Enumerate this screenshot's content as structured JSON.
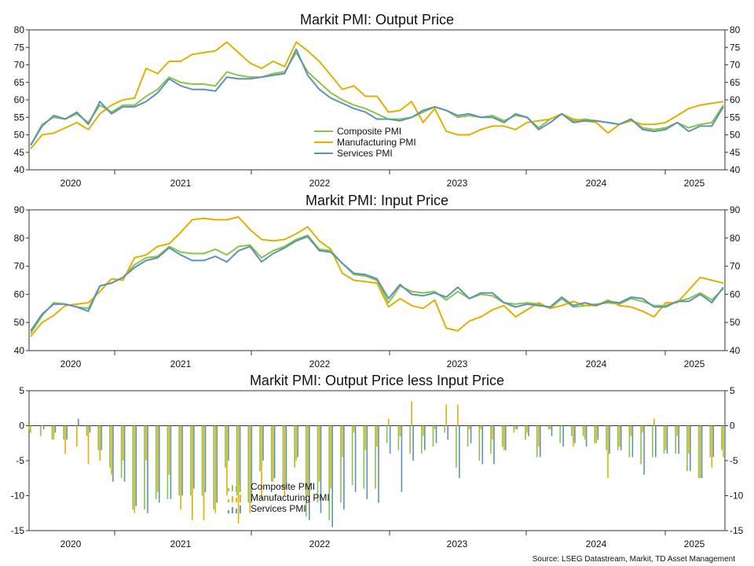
{
  "colors": {
    "composite": "#8bc34a",
    "manufacturing": "#e0b000",
    "services": "#5b93b6"
  },
  "source": "Source: LSEG Datastream, Markit, TD Asset Management",
  "chart_data": [
    {
      "type": "line",
      "title": "Markit PMI: Output Price",
      "ylim": [
        40,
        80
      ],
      "yticks": [
        40,
        45,
        50,
        55,
        60,
        65,
        70,
        75,
        80
      ],
      "x_start": "2019-09",
      "x_end": "2025-03",
      "x_tick_labels": [
        "2020",
        "2021",
        "2022",
        "2023",
        "2024",
        "2025"
      ],
      "legend": "lower-center",
      "series": [
        {
          "name": "Composite PMI",
          "color_key": "composite",
          "values": [
            47,
            53,
            55,
            54.5,
            56,
            53.5,
            58.5,
            56.5,
            58.5,
            58.5,
            61,
            63,
            66.5,
            65,
            64.5,
            64.5,
            64,
            68,
            67,
            66.5,
            66.5,
            67.5,
            68,
            73.5,
            68,
            65,
            62,
            60,
            58.5,
            57.5,
            56,
            54.5,
            54.5,
            55,
            56.5,
            58,
            57,
            55,
            55.5,
            55,
            55.5,
            54,
            55.5,
            55,
            52,
            54.5,
            56,
            54,
            54.5,
            54,
            53.5,
            53,
            54.5,
            52,
            51.5,
            52,
            53.5,
            52,
            53,
            53.5,
            58.5
          ]
        },
        {
          "name": "Manufacturing PMI",
          "color_key": "manufacturing",
          "values": [
            46,
            50,
            50.5,
            52,
            53.5,
            51.5,
            56,
            58.5,
            60,
            60.5,
            69,
            67.5,
            71,
            71,
            73,
            73.5,
            74,
            76.5,
            73.5,
            70.5,
            69,
            71,
            69.5,
            76.5,
            74,
            71,
            67,
            63,
            64,
            61,
            61,
            56.5,
            57,
            59.5,
            53.5,
            57.5,
            51,
            50,
            50,
            51.5,
            52.5,
            52.5,
            51.5,
            53.5,
            54,
            54.5,
            56,
            54.5,
            54,
            53.5,
            50.5,
            53,
            54,
            53,
            53,
            53.5,
            55.5,
            57.5,
            58.5,
            59,
            59.5
          ]
        },
        {
          "name": "Services PMI",
          "color_key": "services",
          "values": [
            47,
            52.5,
            55.5,
            54.5,
            56.5,
            53,
            59.5,
            56,
            58,
            58,
            59.5,
            62,
            66,
            64,
            63,
            63,
            62.5,
            66.5,
            66,
            66,
            66.5,
            67,
            67.5,
            74.5,
            67,
            63,
            60.5,
            59,
            57.5,
            56.5,
            54.5,
            54.5,
            54,
            55,
            57,
            58,
            57,
            55.5,
            56,
            55,
            55,
            53.5,
            56,
            55,
            51.5,
            53.5,
            56,
            53.5,
            54,
            54,
            53.5,
            53,
            54.5,
            51.5,
            51,
            51.5,
            53.5,
            51,
            52.5,
            52.5,
            58
          ]
        }
      ]
    },
    {
      "type": "line",
      "title": "Markit PMI: Input Price",
      "ylim": [
        40,
        90
      ],
      "yticks": [
        40,
        50,
        60,
        70,
        80,
        90
      ],
      "x_start": "2019-09",
      "x_end": "2025-03",
      "x_tick_labels": [
        "2020",
        "2021",
        "2022",
        "2023",
        "2024",
        "2025"
      ],
      "series": [
        {
          "name": "Composite PMI",
          "color_key": "composite",
          "values": [
            46,
            52.5,
            57,
            56.5,
            55.5,
            55,
            63,
            64,
            66,
            70.5,
            73,
            73.5,
            77,
            75,
            74.5,
            74.5,
            76,
            74,
            77,
            77.5,
            73,
            75.5,
            77,
            79.5,
            81,
            76,
            75.5,
            71,
            67,
            66.5,
            65,
            57,
            63,
            61,
            60.5,
            61,
            58,
            61,
            58.5,
            60,
            59.5,
            57,
            56.5,
            57,
            56.5,
            55,
            58.5,
            55.5,
            56,
            56.5,
            57,
            56.5,
            58.5,
            57.5,
            56,
            56,
            57.5,
            58.5,
            60.5,
            58,
            62
          ]
        },
        {
          "name": "Manufacturing PMI",
          "color_key": "manufacturing",
          "values": [
            45,
            50,
            52.5,
            56,
            56.5,
            57,
            61,
            65.5,
            65,
            73,
            74,
            77,
            78,
            82,
            86.5,
            87,
            86.5,
            86.5,
            87.5,
            83,
            79.5,
            79,
            79.5,
            81.5,
            84,
            79,
            76,
            67.5,
            65,
            64.5,
            64,
            55.5,
            58.5,
            56,
            55,
            58,
            48,
            47,
            50.5,
            52,
            54.5,
            56,
            52,
            54.5,
            57,
            55,
            56,
            57.5,
            56,
            56,
            58,
            56,
            55.5,
            54,
            52,
            57,
            57,
            61.5,
            66,
            65,
            64
          ]
        },
        {
          "name": "Services PMI",
          "color_key": "services",
          "values": [
            47,
            53,
            56.5,
            56.5,
            55.5,
            54,
            63,
            64,
            66,
            69.5,
            72,
            73,
            76.5,
            74,
            72,
            72,
            73.5,
            71.5,
            75.5,
            77,
            71.5,
            74.5,
            76.5,
            79,
            80.5,
            75.5,
            75,
            71,
            67.5,
            67,
            65.5,
            58.5,
            63.5,
            60,
            59.5,
            60.5,
            59,
            62.5,
            58.5,
            60.5,
            60.5,
            57,
            55.5,
            56.5,
            56,
            55.5,
            59,
            56,
            57,
            56,
            57.5,
            57,
            59,
            58.5,
            55.5,
            55.5,
            57.5,
            57.5,
            60,
            57,
            62.5
          ]
        }
      ]
    },
    {
      "type": "bar",
      "title": "Markit PMI: Output Price less Input Price",
      "ylim": [
        -15,
        5
      ],
      "yticks": [
        -15,
        -10,
        -5,
        0,
        5
      ],
      "x_start": "2019-09",
      "x_end": "2025-03",
      "x_tick_labels": [
        "2020",
        "2021",
        "2022",
        "2023",
        "2024",
        "2025"
      ],
      "legend": "lower-center",
      "series": [
        {
          "name": "Composite PMI",
          "color_key": "composite",
          "values": [
            -0.5,
            -1.5,
            -2,
            -2,
            0,
            -1.5,
            -3.5,
            -6,
            -7.5,
            -12,
            -12,
            -10.5,
            -10.5,
            -10,
            -10,
            -10,
            -12,
            -6,
            -10,
            -11,
            -6.5,
            -8,
            -9,
            -6,
            -13,
            -11,
            -13.5,
            -11,
            -8.5,
            -9,
            -9,
            -2.5,
            -3.5,
            -4,
            -4,
            -3,
            -1,
            -6,
            -3,
            -5,
            -4,
            -3,
            -1,
            -2,
            -4.5,
            -0.5,
            -2.5,
            -1.5,
            -1.5,
            -2.5,
            -3.5,
            -3.5,
            -4.5,
            -5.5,
            -4.5,
            -4,
            -4,
            -6.5,
            -7.5,
            -4.5,
            -3.5
          ]
        },
        {
          "name": "Manufacturing PMI",
          "color_key": "manufacturing",
          "values": [
            -1,
            0,
            -2,
            -4,
            -3,
            -5.5,
            -5,
            -7,
            -5,
            -12.5,
            -5,
            -9.5,
            -7,
            -12,
            -13.5,
            -13.5,
            -12.5,
            -10,
            -14,
            -12.5,
            -10.5,
            -8,
            -10,
            -5,
            -10,
            -8,
            -9,
            -4.5,
            -1,
            -3.5,
            -3,
            1,
            -1.5,
            3.5,
            -1.5,
            -0.5,
            3,
            3,
            -0.5,
            -0.5,
            -2,
            -3.5,
            -0.5,
            -1,
            -3,
            -0.5,
            0,
            -3,
            -2,
            -2.5,
            -7.5,
            -3,
            -1.5,
            -1,
            1,
            -3.5,
            -1.5,
            -4,
            -7.5,
            -6,
            -4.5
          ]
        },
        {
          "name": "Services PMI",
          "color_key": "services",
          "values": [
            0,
            -0.5,
            -1,
            -2,
            1,
            -1,
            -3.5,
            -8,
            -8,
            -11.5,
            -12.5,
            -11,
            -10.5,
            -10,
            -9,
            -9.5,
            -11,
            -5,
            -9.5,
            -11,
            -5,
            -7.5,
            -9,
            -4.5,
            -13.5,
            -12.5,
            -14.5,
            -12,
            -9.5,
            -10.5,
            -11,
            -4,
            -9.5,
            -5,
            -3.5,
            -2.5,
            -2,
            -7.5,
            -2.5,
            -5.5,
            -5.5,
            -3.5,
            -0.5,
            -1.5,
            -4.5,
            -1.5,
            -3,
            -2.5,
            -3,
            -2,
            -4,
            -3.5,
            -4.5,
            -7,
            -4.5,
            -4,
            -4,
            -6.5,
            -7.5,
            -4.5,
            -4.5
          ]
        }
      ]
    }
  ]
}
